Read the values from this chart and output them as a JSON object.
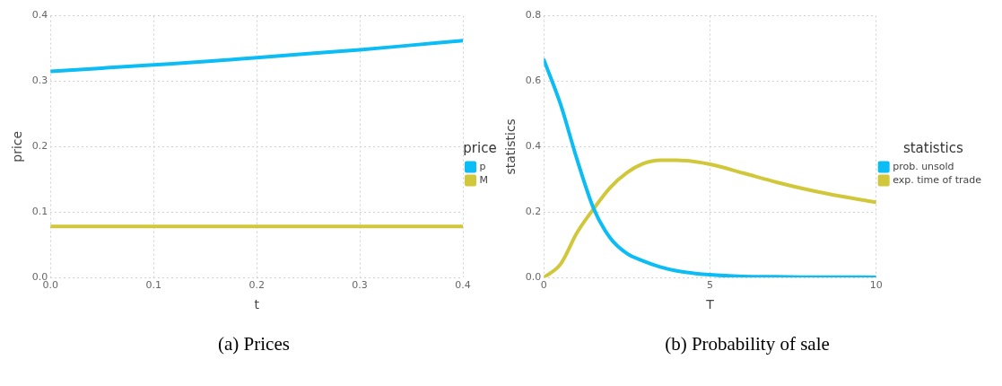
{
  "chart_data": [
    {
      "type": "line",
      "xlabel": "t",
      "ylabel": "price",
      "legend_title": "price",
      "legend": "right",
      "grid": true,
      "xlim": [
        0,
        0.4
      ],
      "ylim": [
        0,
        0.4
      ],
      "xticks": [
        {
          "value": 0,
          "label": "0.0"
        },
        0.1,
        0.2,
        0.3,
        0.4
      ],
      "yticks": [
        {
          "value": 0,
          "label": "0.0"
        },
        0.1,
        0.2,
        0.3,
        0.4
      ],
      "annotations": [
        "(a) Prices"
      ],
      "x": [
        0,
        0.05,
        0.1,
        0.15,
        0.2,
        0.25,
        0.3,
        0.35,
        0.4
      ],
      "series": [
        {
          "name": "p",
          "color": "#0bbdf4",
          "values": [
            0.315,
            0.32,
            0.325,
            0.33,
            0.336,
            0.342,
            0.348,
            0.355,
            0.362
          ]
        },
        {
          "name": "M",
          "color": "#d0c83a",
          "values": [
            0.078,
            0.078,
            0.078,
            0.078,
            0.078,
            0.078,
            0.078,
            0.078,
            0.078
          ]
        }
      ]
    },
    {
      "type": "line",
      "xlabel": "T",
      "ylabel": "statistics",
      "legend_title": "statistics",
      "legend": "right",
      "grid": true,
      "xlim": [
        0,
        10
      ],
      "ylim": [
        0,
        0.8
      ],
      "xticks": [
        0,
        5,
        10
      ],
      "yticks": [
        {
          "value": 0,
          "label": "0.0"
        },
        0.2,
        0.4,
        0.6,
        0.8
      ],
      "annotations": [
        "(b) Probability of sale"
      ],
      "x": [
        0,
        0.5,
        1,
        1.5,
        2,
        2.5,
        3,
        3.5,
        4,
        5,
        6,
        7,
        8,
        9,
        10
      ],
      "series": [
        {
          "name": "prob. unsold",
          "color": "#0bbdf4",
          "values": [
            0.665,
            0.53,
            0.36,
            0.21,
            0.12,
            0.073,
            0.05,
            0.032,
            0.02,
            0.008,
            0.003,
            0.002,
            0.001,
            0.001,
            0
          ]
        },
        {
          "name": "exp. time of trade",
          "color": "#d0c83a",
          "values": [
            0,
            0.04,
            0.137,
            0.21,
            0.275,
            0.32,
            0.348,
            0.358,
            0.358,
            0.346,
            0.319,
            0.291,
            0.267,
            0.247,
            0.23
          ]
        }
      ]
    }
  ]
}
